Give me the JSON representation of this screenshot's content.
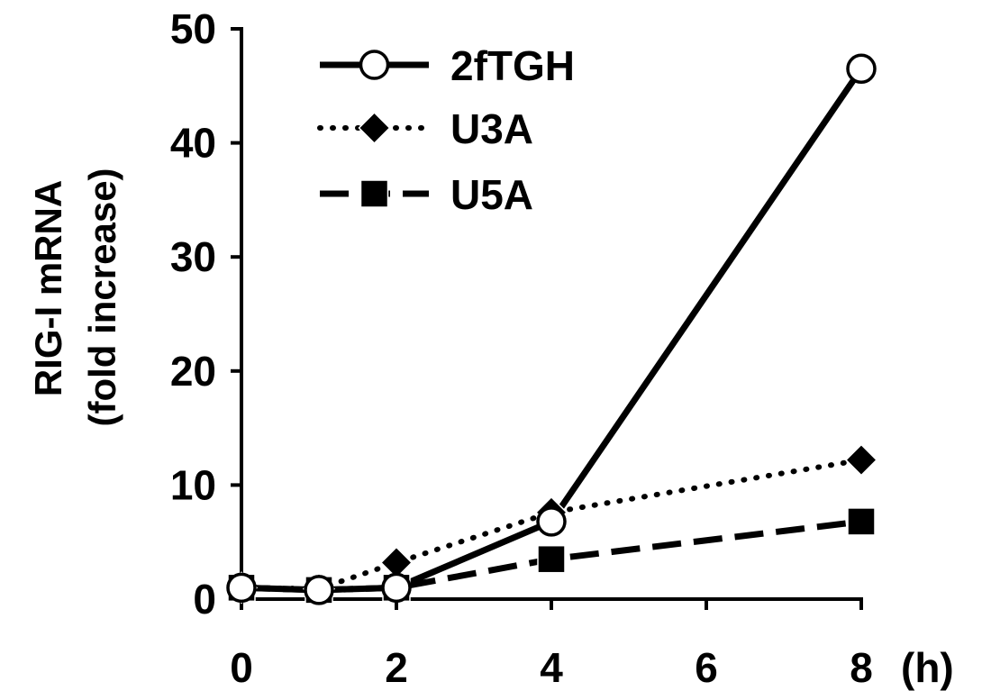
{
  "chart_data": {
    "type": "line",
    "title": "",
    "xlabel": "",
    "x_unit_label": "(h)",
    "ylabel_line1": "RIG-I mRNA",
    "ylabel_line2": "(fold increase)",
    "x": [
      0,
      1,
      2,
      4,
      8
    ],
    "x_ticks": [
      "0",
      "2",
      "4",
      "6",
      "8"
    ],
    "y_ticks": [
      "0",
      "10",
      "20",
      "30",
      "40",
      "50"
    ],
    "xlim": [
      0,
      8
    ],
    "ylim": [
      0,
      50
    ],
    "grid": false,
    "legend_position": "top-left",
    "series": [
      {
        "name": "2fTGH",
        "values": [
          1.0,
          0.8,
          1.0,
          6.8,
          46.5
        ],
        "line_style": "solid",
        "marker": "open-circle",
        "color": "#000000"
      },
      {
        "name": "U3A",
        "values": [
          1.0,
          0.9,
          3.2,
          7.6,
          12.2
        ],
        "line_style": "dotted",
        "marker": "filled-diamond",
        "color": "#000000"
      },
      {
        "name": "U5A",
        "values": [
          1.0,
          0.8,
          1.0,
          3.5,
          6.8
        ],
        "line_style": "dashed",
        "marker": "filled-square",
        "color": "#000000"
      }
    ]
  }
}
